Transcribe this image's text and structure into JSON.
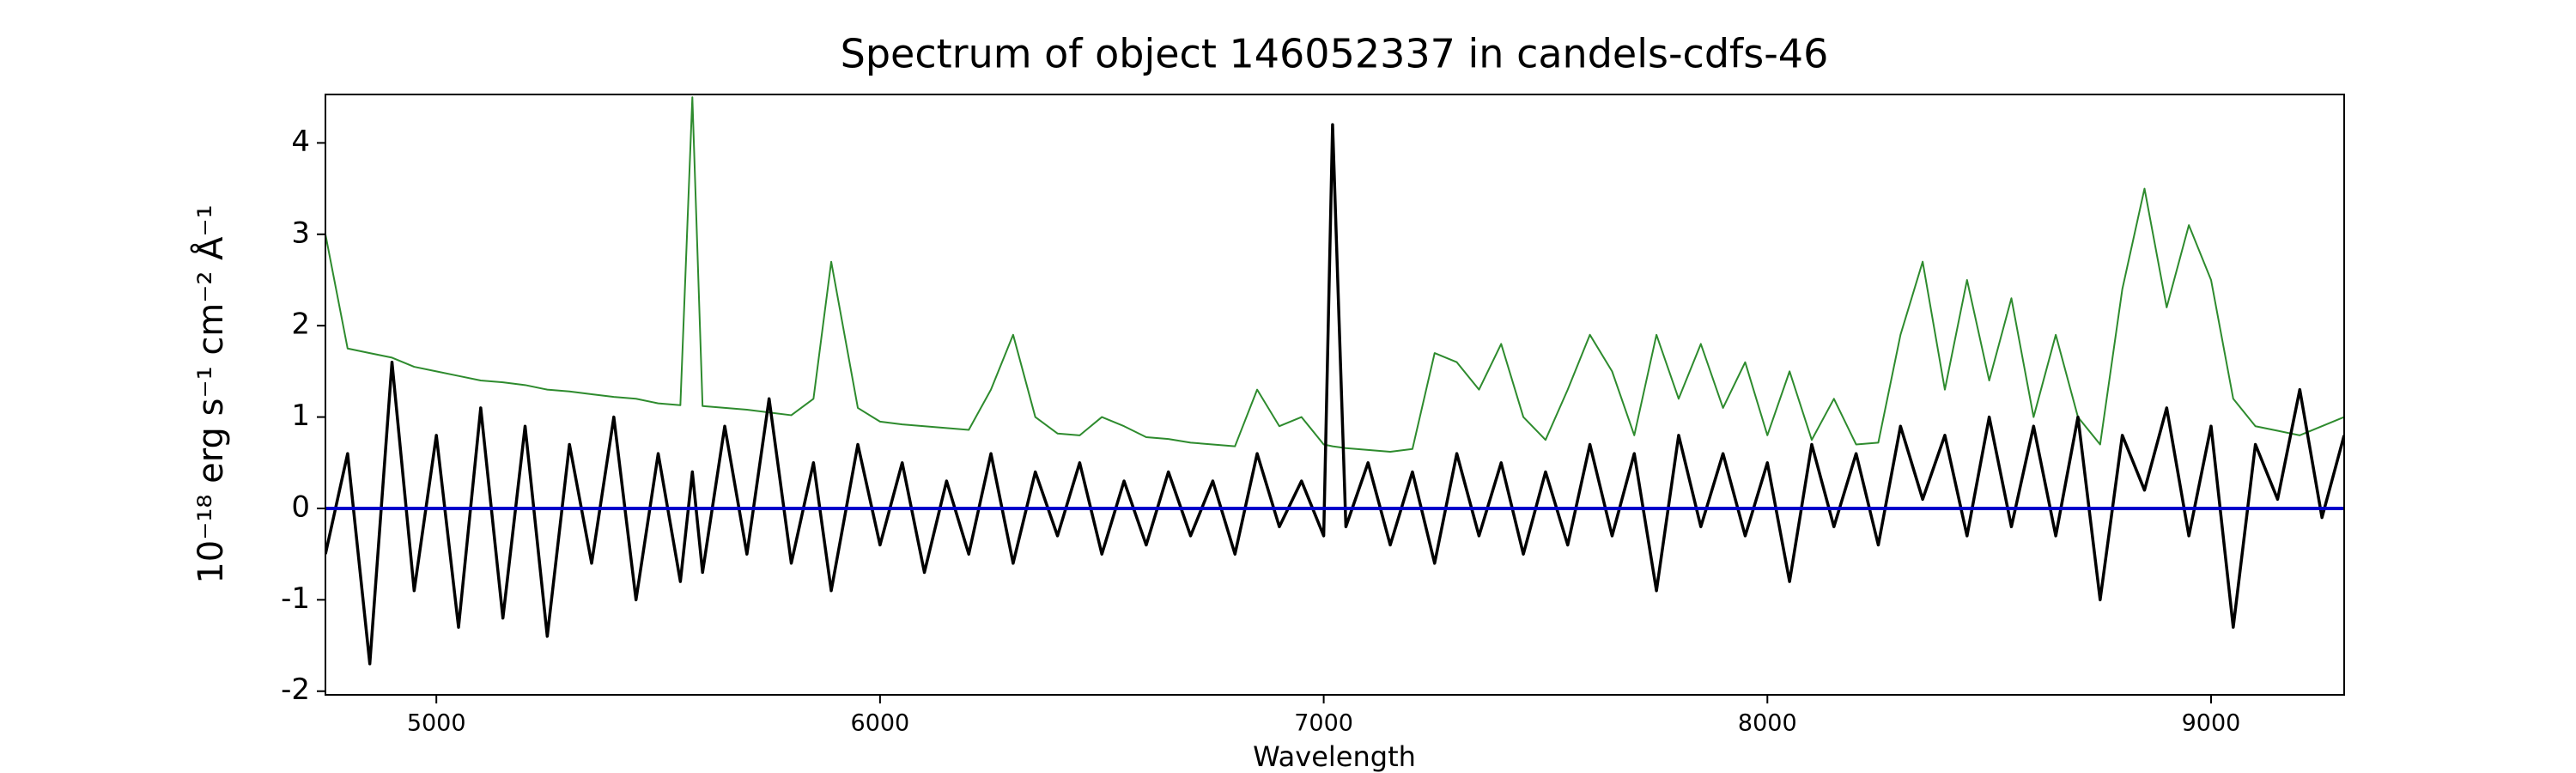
{
  "chart_data": {
    "type": "line",
    "title": "Spectrum of object 146052337 in candels-cdfs-46",
    "xlabel": "Wavelength",
    "ylabel": "10⁻¹⁸ erg s⁻¹ cm⁻² Å⁻¹",
    "x": [
      4750,
      4800,
      4850,
      4900,
      4950,
      5000,
      5050,
      5100,
      5150,
      5200,
      5250,
      5300,
      5350,
      5400,
      5450,
      5500,
      5550,
      5577,
      5600,
      5650,
      5700,
      5750,
      5800,
      5850,
      5890,
      5950,
      6000,
      6050,
      6100,
      6150,
      6200,
      6250,
      6300,
      6350,
      6400,
      6450,
      6500,
      6550,
      6600,
      6650,
      6700,
      6750,
      6800,
      6850,
      6900,
      6950,
      7000,
      7020,
      7050,
      7100,
      7150,
      7200,
      7250,
      7300,
      7350,
      7400,
      7450,
      7500,
      7550,
      7600,
      7650,
      7700,
      7750,
      7800,
      7850,
      7900,
      7950,
      8000,
      8050,
      8100,
      8150,
      8200,
      8250,
      8300,
      8350,
      8400,
      8450,
      8500,
      8550,
      8600,
      8650,
      8700,
      8750,
      8800,
      8850,
      8900,
      8950,
      9000,
      9050,
      9100,
      9150,
      9200,
      9250,
      9300
    ],
    "series": [
      {
        "color": "#2e8b2e",
        "width": 2,
        "values": [
          3.0,
          1.75,
          1.7,
          1.65,
          1.55,
          1.5,
          1.45,
          1.4,
          1.38,
          1.35,
          1.3,
          1.28,
          1.25,
          1.22,
          1.2,
          1.15,
          1.13,
          4.5,
          1.12,
          1.1,
          1.08,
          1.05,
          1.02,
          1.2,
          2.7,
          1.1,
          0.95,
          0.92,
          0.9,
          0.88,
          0.86,
          1.3,
          1.9,
          1.0,
          0.82,
          0.8,
          1.0,
          0.9,
          0.78,
          0.76,
          0.72,
          0.7,
          0.68,
          1.3,
          0.9,
          1.0,
          0.7,
          0.68,
          0.66,
          0.64,
          0.62,
          0.65,
          1.7,
          1.6,
          1.3,
          1.8,
          1.0,
          0.75,
          1.3,
          1.9,
          1.5,
          0.8,
          1.9,
          1.2,
          1.8,
          1.1,
          1.6,
          0.8,
          1.5,
          0.75,
          1.2,
          0.7,
          0.72,
          1.9,
          2.7,
          1.3,
          2.5,
          1.4,
          2.3,
          1.0,
          1.9,
          1.0,
          0.7,
          2.4,
          3.5,
          2.2,
          3.1,
          2.5,
          1.2,
          0.9,
          0.85,
          0.8,
          0.9,
          1.0
        ]
      },
      {
        "color": "#000000",
        "width": 3.5,
        "values": [
          -0.5,
          0.6,
          -1.7,
          1.6,
          -0.9,
          0.8,
          -1.3,
          1.1,
          -1.2,
          0.9,
          -1.4,
          0.7,
          -0.6,
          1.0,
          -1.0,
          0.6,
          -0.8,
          0.4,
          -0.7,
          0.9,
          -0.5,
          1.2,
          -0.6,
          0.5,
          -0.9,
          0.7,
          -0.4,
          0.5,
          -0.7,
          0.3,
          -0.5,
          0.6,
          -0.6,
          0.4,
          -0.3,
          0.5,
          -0.5,
          0.3,
          -0.4,
          0.4,
          -0.3,
          0.3,
          -0.5,
          0.6,
          -0.2,
          0.3,
          -0.3,
          4.2,
          -0.2,
          0.5,
          -0.4,
          0.4,
          -0.6,
          0.6,
          -0.3,
          0.5,
          -0.5,
          0.4,
          -0.4,
          0.7,
          -0.3,
          0.6,
          -0.9,
          0.8,
          -0.2,
          0.6,
          -0.3,
          0.5,
          -0.8,
          0.7,
          -0.2,
          0.6,
          -0.4,
          0.9,
          0.1,
          0.8,
          -0.3,
          1.0,
          -0.2,
          0.9,
          -0.3,
          1.0,
          -1.0,
          0.8,
          0.2,
          1.1,
          -0.3,
          0.9,
          -1.3,
          0.7,
          0.1,
          1.3,
          -0.1,
          0.8
        ]
      },
      {
        "color": "#0000cc",
        "width": 4,
        "x": [
          4750,
          9300
        ],
        "values": [
          0,
          0
        ]
      }
    ],
    "xlim": [
      4750,
      9300
    ],
    "ylim": [
      -2.04,
      4.53
    ],
    "xticks": [
      5000,
      6000,
      7000,
      8000,
      9000
    ],
    "yticks": [
      -2,
      -1,
      0,
      1,
      2,
      3,
      4
    ]
  }
}
